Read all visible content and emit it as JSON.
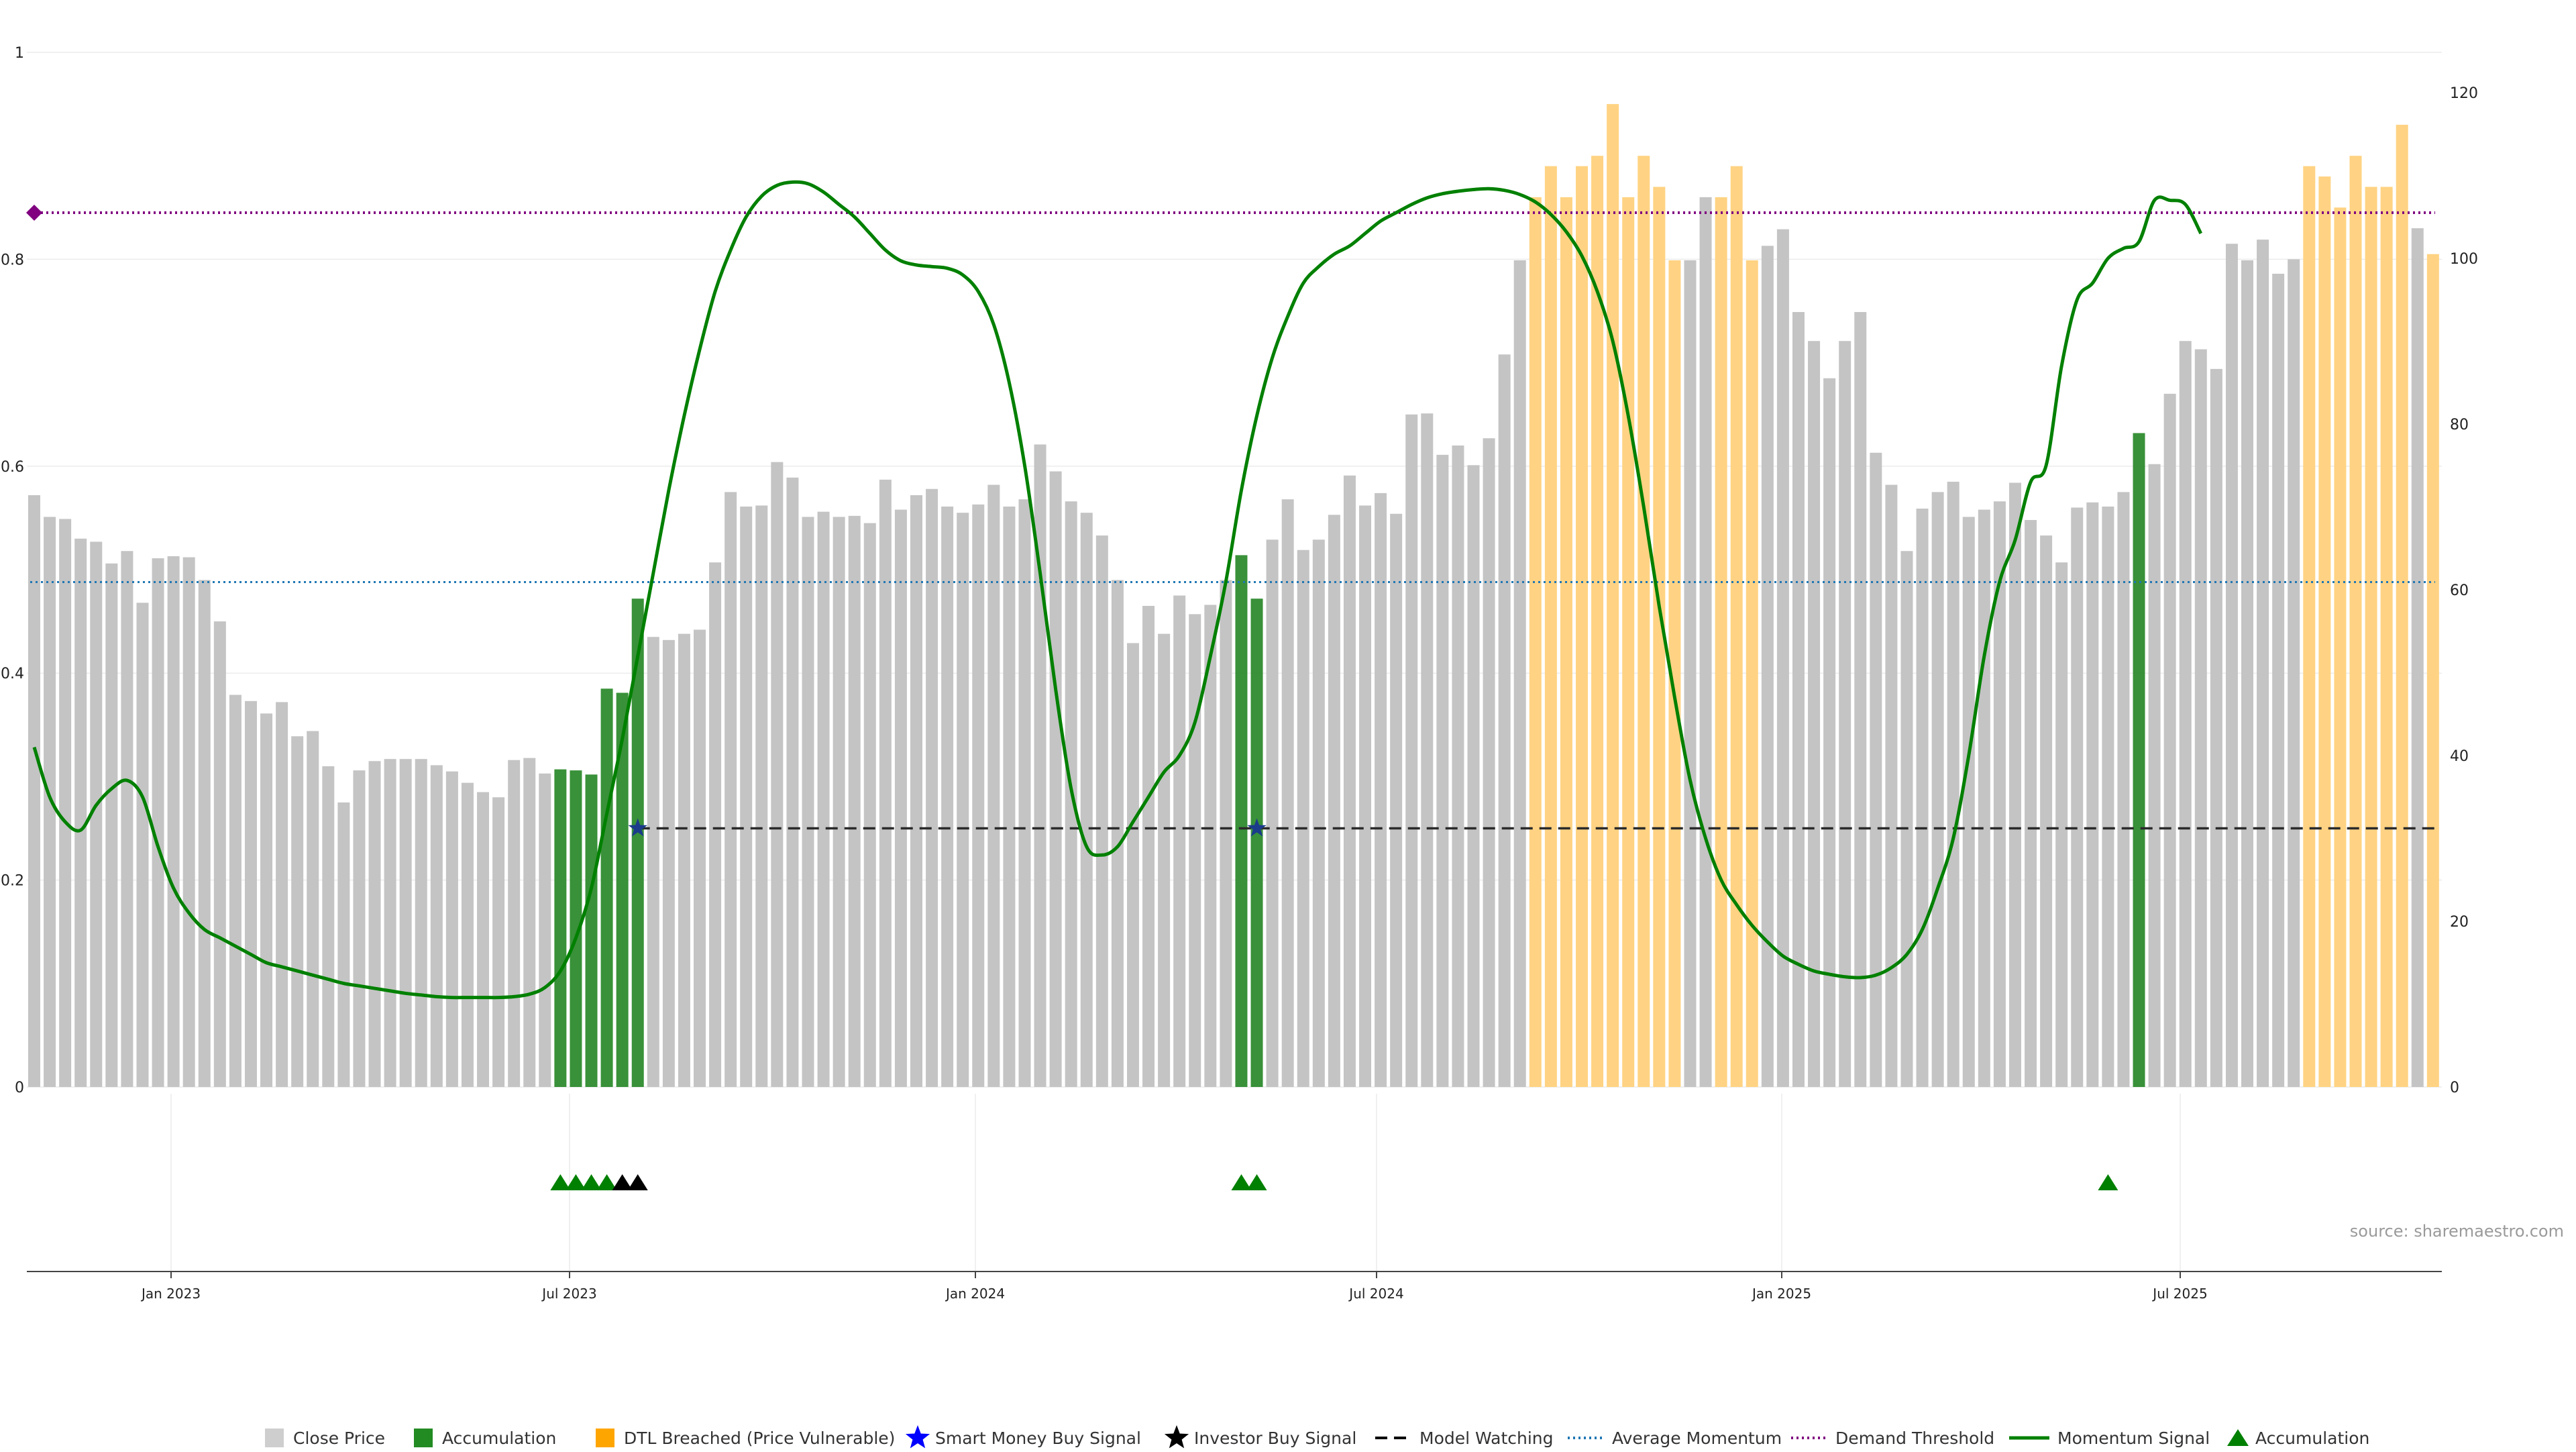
{
  "chart_data": {
    "type": "bar",
    "source_text": "source: sharemaestro.com",
    "x_ticks": [
      "Jan 2023",
      "Jul 2023",
      "Jan 2024",
      "Jul 2024",
      "Jan 2025",
      "Jul 2025"
    ],
    "left_axis": {
      "ylim": [
        0,
        1
      ],
      "ticks": [
        "0",
        "0.2",
        "0.4",
        "0.6",
        "0.8",
        "1"
      ]
    },
    "right_axis": {
      "ylim": [
        0,
        120
      ],
      "ticks": [
        "0",
        "20",
        "40",
        "60",
        "80",
        "100",
        "120"
      ]
    },
    "grid": true,
    "legend_position": "bottom",
    "legend": [
      {
        "id": "close",
        "label": "Close Price",
        "marker": "square",
        "color": "#bdbdbd"
      },
      {
        "id": "accum",
        "label": "Accumulation",
        "marker": "square",
        "color": "#228b22"
      },
      {
        "id": "dtl",
        "label": "DTL Breached (Price Vulnerable)",
        "marker": "square",
        "color": "#ffa500"
      },
      {
        "id": "smart",
        "label": "Smart Money Buy Signal",
        "marker": "star",
        "color": "#0000ff"
      },
      {
        "id": "investor",
        "label": "Investor Buy Signal",
        "marker": "star",
        "color": "#000000"
      },
      {
        "id": "watch",
        "label": "Model Watching",
        "marker": "dash",
        "color": "#000000"
      },
      {
        "id": "avgmom",
        "label": "Average Momentum",
        "marker": "dot",
        "color": "#1f77b4"
      },
      {
        "id": "demand",
        "label": "Demand Threshold",
        "marker": "dot",
        "color": "#800080"
      },
      {
        "id": "momentum",
        "label": "Momentum Signal",
        "marker": "line",
        "color": "#008000"
      },
      {
        "id": "accum_tri",
        "label": "Accumulation",
        "marker": "triangle",
        "color": "#008000"
      }
    ],
    "bars": {
      "values": [
        0.572,
        0.551,
        0.549,
        0.53,
        0.527,
        0.506,
        0.518,
        0.468,
        0.511,
        0.513,
        0.512,
        0.49,
        0.45,
        0.379,
        0.373,
        0.361,
        0.372,
        0.339,
        0.344,
        0.31,
        0.275,
        0.306,
        0.315,
        0.317,
        0.317,
        0.317,
        0.311,
        0.305,
        0.294,
        0.285,
        0.28,
        0.316,
        0.318,
        0.303,
        0.307,
        0.306,
        0.302,
        0.385,
        0.381,
        0.472,
        0.435,
        0.432,
        0.438,
        0.442,
        0.507,
        0.575,
        0.561,
        0.562,
        0.604,
        0.589,
        0.551,
        0.556,
        0.551,
        0.552,
        0.545,
        0.587,
        0.558,
        0.572,
        0.578,
        0.561,
        0.555,
        0.563,
        0.582,
        0.561,
        0.568,
        0.621,
        0.595,
        0.566,
        0.555,
        0.533,
        0.49,
        0.429,
        0.465,
        0.438,
        0.475,
        0.457,
        0.466,
        0.49,
        0.514,
        0.472,
        0.529,
        0.568,
        0.519,
        0.529,
        0.553,
        0.591,
        0.562,
        0.574,
        0.554,
        0.65,
        0.651,
        0.611,
        0.62,
        0.601,
        0.627,
        0.708,
        0.799,
        0.86,
        0.89,
        0.86,
        0.89,
        0.9,
        0.95,
        0.86,
        0.9,
        0.87,
        0.799,
        0.799,
        0.86,
        0.86,
        0.89,
        0.799,
        0.813,
        0.829,
        0.749,
        0.721,
        0.685,
        0.721,
        0.749,
        0.613,
        0.582,
        0.518,
        0.559,
        0.575,
        0.585,
        0.551,
        0.558,
        0.566,
        0.584,
        0.548,
        0.533,
        0.507,
        0.56,
        0.565,
        0.561,
        0.575,
        0.632,
        0.602,
        0.67,
        0.721,
        0.713,
        0.694,
        0.815,
        0.799,
        0.819,
        0.786,
        0.8,
        0.89,
        0.88,
        0.85,
        0.9,
        0.87,
        0.87,
        0.93,
        0.83,
        0.805
      ],
      "category": [
        "c",
        "c",
        "c",
        "c",
        "c",
        "c",
        "c",
        "c",
        "c",
        "c",
        "c",
        "c",
        "c",
        "c",
        "c",
        "c",
        "c",
        "c",
        "c",
        "c",
        "c",
        "c",
        "c",
        "c",
        "c",
        "c",
        "c",
        "c",
        "c",
        "c",
        "c",
        "c",
        "c",
        "c",
        "a",
        "a",
        "a",
        "a",
        "a",
        "a",
        "c",
        "c",
        "c",
        "c",
        "c",
        "c",
        "c",
        "c",
        "c",
        "c",
        "c",
        "c",
        "c",
        "c",
        "c",
        "c",
        "c",
        "c",
        "c",
        "c",
        "c",
        "c",
        "c",
        "c",
        "c",
        "c",
        "c",
        "c",
        "c",
        "c",
        "c",
        "c",
        "c",
        "c",
        "c",
        "c",
        "c",
        "c",
        "a",
        "a",
        "c",
        "c",
        "c",
        "c",
        "c",
        "c",
        "c",
        "c",
        "c",
        "c",
        "c",
        "c",
        "c",
        "c",
        "c",
        "c",
        "c",
        "d",
        "d",
        "d",
        "d",
        "d",
        "d",
        "d",
        "d",
        "d",
        "d",
        "c",
        "c",
        "d",
        "d",
        "d",
        "c",
        "c",
        "c",
        "c",
        "c",
        "c",
        "c",
        "c",
        "c",
        "c",
        "c",
        "c",
        "c",
        "c",
        "c",
        "c",
        "c",
        "c",
        "c",
        "c",
        "c",
        "c",
        "c",
        "c",
        "a",
        "c",
        "c",
        "c",
        "c",
        "c",
        "c",
        "c",
        "c",
        "c",
        "c",
        "d",
        "d",
        "d",
        "d",
        "d",
        "d",
        "d",
        "c",
        "d"
      ]
    },
    "momentum_signal": [
      41,
      35,
      32,
      31,
      34,
      36,
      37,
      35,
      29,
      24,
      21,
      19,
      18,
      17,
      16,
      15,
      14.5,
      14,
      13.5,
      13,
      12.5,
      12.2,
      11.9,
      11.6,
      11.3,
      11.1,
      10.9,
      10.8,
      10.8,
      10.8,
      10.8,
      10.9,
      11.2,
      12,
      14,
      18,
      24,
      33,
      42,
      52,
      62,
      72,
      81,
      89,
      96,
      101,
      105,
      107.5,
      108.8,
      109.2,
      109,
      108,
      106.5,
      105,
      103,
      101,
      99.7,
      99.2,
      99,
      98.8,
      98,
      96,
      92,
      85,
      75,
      62,
      48,
      36,
      29,
      28,
      29,
      32,
      35,
      38,
      40,
      44,
      52,
      61,
      72,
      81,
      88,
      93,
      97,
      99,
      100.5,
      101.5,
      103,
      104.5,
      105.5,
      106.5,
      107.3,
      107.8,
      108.1,
      108.3,
      108.4,
      108.2,
      107.7,
      106.8,
      105.3,
      103.2,
      100.3,
      96,
      90,
      81,
      70,
      58,
      47,
      37,
      30,
      25,
      22,
      19.5,
      17.5,
      15.8,
      14.8,
      14,
      13.6,
      13.3,
      13.2,
      13.5,
      14.4,
      16,
      19,
      24,
      30,
      40,
      52,
      61,
      66,
      73,
      75,
      87,
      95,
      97,
      100,
      101.2,
      102,
      107,
      107,
      106.5,
      103
    ],
    "average_momentum_left": 0.488,
    "demand_threshold_left": 0.845,
    "model_watching_left": 0.25,
    "model_watching_start_bar": 39,
    "smart_money_bars": [
      39,
      79
    ],
    "accumulation_triangle_bars": [
      34,
      35,
      36,
      37,
      78,
      79,
      134
    ],
    "investor_triangle_bars": [
      38,
      39
    ],
    "demand_marker_bar": 0
  }
}
